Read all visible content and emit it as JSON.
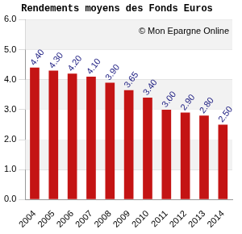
{
  "chart_data": {
    "type": "bar",
    "title": "Rendements moyens des Fonds Euros",
    "annotation": "© Mon Epargne Online",
    "categories": [
      "2004",
      "2005",
      "2006",
      "2007",
      "2008",
      "2009",
      "2010",
      "2011",
      "2012",
      "2013",
      "2014"
    ],
    "values": [
      4.4,
      4.3,
      4.2,
      4.1,
      3.9,
      3.65,
      3.4,
      3.0,
      2.9,
      2.8,
      2.5
    ],
    "value_labels": [
      "4.40",
      "4.30",
      "4.20",
      "4.10",
      "3.90",
      "3.65",
      "3.40",
      "3.00",
      "2.90",
      "2.80",
      "2.50"
    ],
    "data_labels": true,
    "color": "#c41414",
    "ylim": [
      0,
      6
    ],
    "yticks": [
      {
        "value": 0,
        "label": "0.0"
      },
      {
        "value": 1,
        "label": "1.0"
      },
      {
        "value": 2,
        "label": "2.0"
      },
      {
        "value": 3,
        "label": "3.0"
      },
      {
        "value": 4,
        "label": "4.0"
      },
      {
        "value": 5,
        "label": "5.0"
      },
      {
        "value": 6,
        "label": "6.0"
      }
    ],
    "grid": true
  }
}
